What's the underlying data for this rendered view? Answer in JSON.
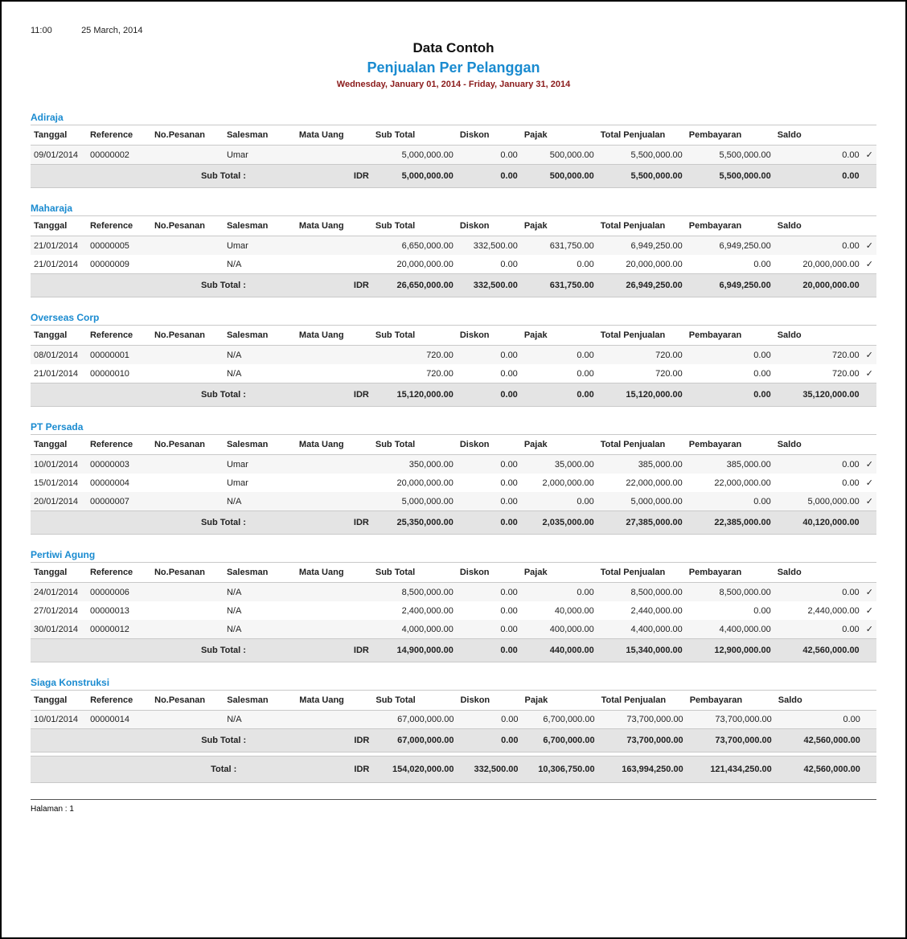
{
  "meta": {
    "time": "11:00",
    "date": "25 March, 2014"
  },
  "titles": {
    "main": "Data Contoh",
    "sub": "Penjualan Per Pelanggan",
    "range": "Wednesday, January 01, 2014 - Friday, January 31, 2014"
  },
  "headers": {
    "tanggal": "Tanggal",
    "reference": "Reference",
    "pesanan": "No.Pesanan",
    "salesman": "Salesman",
    "uang": "Mata Uang",
    "subtotal": "Sub Total",
    "diskon": "Diskon",
    "pajak": "Pajak",
    "total": "Total Penjualan",
    "bayar": "Pembayaran",
    "saldo": "Saldo",
    "subtotal_label": "Sub Total :",
    "total_label": "Total :"
  },
  "footer": {
    "page_label": "Halaman :  1"
  },
  "colors": {
    "accent": "#1a8bd0",
    "date_range": "#8a1a1a",
    "row_alt": "#f6f6f6",
    "subtotal_bg": "#e4e4e4",
    "border": "#c9c9c9"
  },
  "groups": [
    {
      "name": "Adiraja",
      "rows": [
        {
          "tanggal": "09/01/2014",
          "reference": "00000002",
          "pesanan": "",
          "salesman": "Umar",
          "uang": "",
          "subtotal": "5,000,000.00",
          "diskon": "0.00",
          "pajak": "500,000.00",
          "total": "5,500,000.00",
          "bayar": "5,500,000.00",
          "saldo": "0.00",
          "check": true
        }
      ],
      "subtotal": {
        "uang": "IDR",
        "subtotal": "5,000,000.00",
        "diskon": "0.00",
        "pajak": "500,000.00",
        "total": "5,500,000.00",
        "bayar": "5,500,000.00",
        "saldo": "0.00"
      }
    },
    {
      "name": "Maharaja",
      "rows": [
        {
          "tanggal": "21/01/2014",
          "reference": "00000005",
          "pesanan": "",
          "salesman": "Umar",
          "uang": "",
          "subtotal": "6,650,000.00",
          "diskon": "332,500.00",
          "pajak": "631,750.00",
          "total": "6,949,250.00",
          "bayar": "6,949,250.00",
          "saldo": "0.00",
          "check": true
        },
        {
          "tanggal": "21/01/2014",
          "reference": "00000009",
          "pesanan": "",
          "salesman": "N/A",
          "uang": "",
          "subtotal": "20,000,000.00",
          "diskon": "0.00",
          "pajak": "0.00",
          "total": "20,000,000.00",
          "bayar": "0.00",
          "saldo": "20,000,000.00",
          "check": true
        }
      ],
      "subtotal": {
        "uang": "IDR",
        "subtotal": "26,650,000.00",
        "diskon": "332,500.00",
        "pajak": "631,750.00",
        "total": "26,949,250.00",
        "bayar": "6,949,250.00",
        "saldo": "20,000,000.00"
      }
    },
    {
      "name": "Overseas Corp",
      "rows": [
        {
          "tanggal": "08/01/2014",
          "reference": "00000001",
          "pesanan": "",
          "salesman": "N/A",
          "uang": "",
          "subtotal": "720.00",
          "diskon": "0.00",
          "pajak": "0.00",
          "total": "720.00",
          "bayar": "0.00",
          "saldo": "720.00",
          "check": true
        },
        {
          "tanggal": "21/01/2014",
          "reference": "00000010",
          "pesanan": "",
          "salesman": "N/A",
          "uang": "",
          "subtotal": "720.00",
          "diskon": "0.00",
          "pajak": "0.00",
          "total": "720.00",
          "bayar": "0.00",
          "saldo": "720.00",
          "check": true
        }
      ],
      "subtotal": {
        "uang": "IDR",
        "subtotal": "15,120,000.00",
        "diskon": "0.00",
        "pajak": "0.00",
        "total": "15,120,000.00",
        "bayar": "0.00",
        "saldo": "35,120,000.00"
      }
    },
    {
      "name": "PT Persada",
      "rows": [
        {
          "tanggal": "10/01/2014",
          "reference": "00000003",
          "pesanan": "",
          "salesman": "Umar",
          "uang": "",
          "subtotal": "350,000.00",
          "diskon": "0.00",
          "pajak": "35,000.00",
          "total": "385,000.00",
          "bayar": "385,000.00",
          "saldo": "0.00",
          "check": true
        },
        {
          "tanggal": "15/01/2014",
          "reference": "00000004",
          "pesanan": "",
          "salesman": "Umar",
          "uang": "",
          "subtotal": "20,000,000.00",
          "diskon": "0.00",
          "pajak": "2,000,000.00",
          "total": "22,000,000.00",
          "bayar": "22,000,000.00",
          "saldo": "0.00",
          "check": true
        },
        {
          "tanggal": "20/01/2014",
          "reference": "00000007",
          "pesanan": "",
          "salesman": "N/A",
          "uang": "",
          "subtotal": "5,000,000.00",
          "diskon": "0.00",
          "pajak": "0.00",
          "total": "5,000,000.00",
          "bayar": "0.00",
          "saldo": "5,000,000.00",
          "check": true
        }
      ],
      "subtotal": {
        "uang": "IDR",
        "subtotal": "25,350,000.00",
        "diskon": "0.00",
        "pajak": "2,035,000.00",
        "total": "27,385,000.00",
        "bayar": "22,385,000.00",
        "saldo": "40,120,000.00"
      }
    },
    {
      "name": "Pertiwi Agung",
      "rows": [
        {
          "tanggal": "24/01/2014",
          "reference": "00000006",
          "pesanan": "",
          "salesman": "N/A",
          "uang": "",
          "subtotal": "8,500,000.00",
          "diskon": "0.00",
          "pajak": "0.00",
          "total": "8,500,000.00",
          "bayar": "8,500,000.00",
          "saldo": "0.00",
          "check": true
        },
        {
          "tanggal": "27/01/2014",
          "reference": "00000013",
          "pesanan": "",
          "salesman": "N/A",
          "uang": "",
          "subtotal": "2,400,000.00",
          "diskon": "0.00",
          "pajak": "40,000.00",
          "total": "2,440,000.00",
          "bayar": "0.00",
          "saldo": "2,440,000.00",
          "check": true
        },
        {
          "tanggal": "30/01/2014",
          "reference": "00000012",
          "pesanan": "",
          "salesman": "N/A",
          "uang": "",
          "subtotal": "4,000,000.00",
          "diskon": "0.00",
          "pajak": "400,000.00",
          "total": "4,400,000.00",
          "bayar": "4,400,000.00",
          "saldo": "0.00",
          "check": true
        }
      ],
      "subtotal": {
        "uang": "IDR",
        "subtotal": "14,900,000.00",
        "diskon": "0.00",
        "pajak": "440,000.00",
        "total": "15,340,000.00",
        "bayar": "12,900,000.00",
        "saldo": "42,560,000.00"
      }
    },
    {
      "name": "Siaga Konstruksi",
      "rows": [
        {
          "tanggal": "10/01/2014",
          "reference": "00000014",
          "pesanan": "",
          "salesman": "N/A",
          "uang": "",
          "subtotal": "67,000,000.00",
          "diskon": "0.00",
          "pajak": "6,700,000.00",
          "total": "73,700,000.00",
          "bayar": "73,700,000.00",
          "saldo": "0.00",
          "check": false
        }
      ],
      "subtotal": {
        "uang": "IDR",
        "subtotal": "67,000,000.00",
        "diskon": "0.00",
        "pajak": "6,700,000.00",
        "total": "73,700,000.00",
        "bayar": "73,700,000.00",
        "saldo": "42,560,000.00"
      }
    }
  ],
  "grand_total": {
    "uang": "IDR",
    "subtotal": "154,020,000.00",
    "diskon": "332,500.00",
    "pajak": "10,306,750.00",
    "total": "163,994,250.00",
    "bayar": "121,434,250.00",
    "saldo": "42,560,000.00"
  }
}
